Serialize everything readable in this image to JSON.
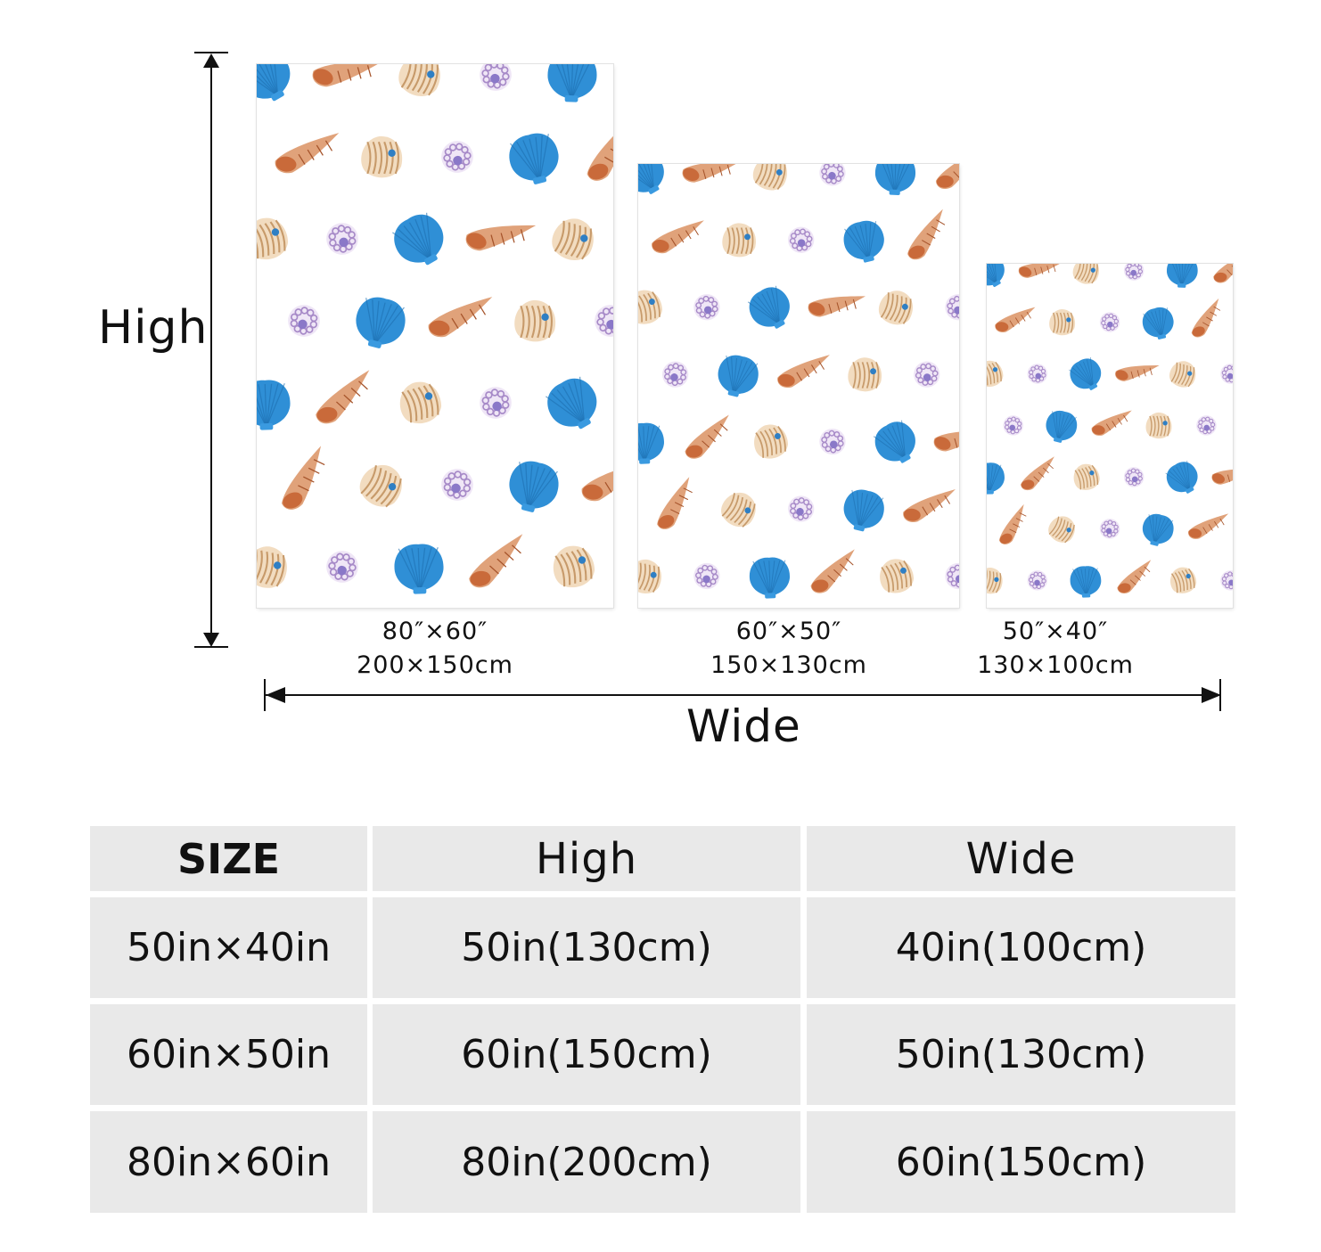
{
  "diagram": {
    "height_label": "High",
    "width_label": "Wide",
    "panels": [
      {
        "inch": "80″×60″",
        "cm": "200×150cm"
      },
      {
        "inch": "60″×50″",
        "cm": "150×130cm"
      },
      {
        "inch": "50″×40″",
        "cm": "130×100cm"
      }
    ],
    "pattern": {
      "motifs": [
        "blue-scallop-shell",
        "orange-conch-shell",
        "nautilus-shell",
        "purple-sea-urchin"
      ],
      "colors": {
        "scallop": "#2f8fd6",
        "conch": "#c96a3a",
        "nautilus": "#c79a6a",
        "urchin": "#a78ac8"
      }
    }
  },
  "size_table": {
    "headers": [
      "SIZE",
      "High",
      "Wide"
    ],
    "rows": [
      {
        "size": "50in×40in",
        "high": "50in(130cm)",
        "wide": "40in(100cm)"
      },
      {
        "size": "60in×50in",
        "high": "60in(150cm)",
        "wide": "50in(130cm)"
      },
      {
        "size": "80in×60in",
        "high": "80in(200cm)",
        "wide": "60in(150cm)"
      }
    ],
    "cell_color": "#e9e9e9"
  }
}
